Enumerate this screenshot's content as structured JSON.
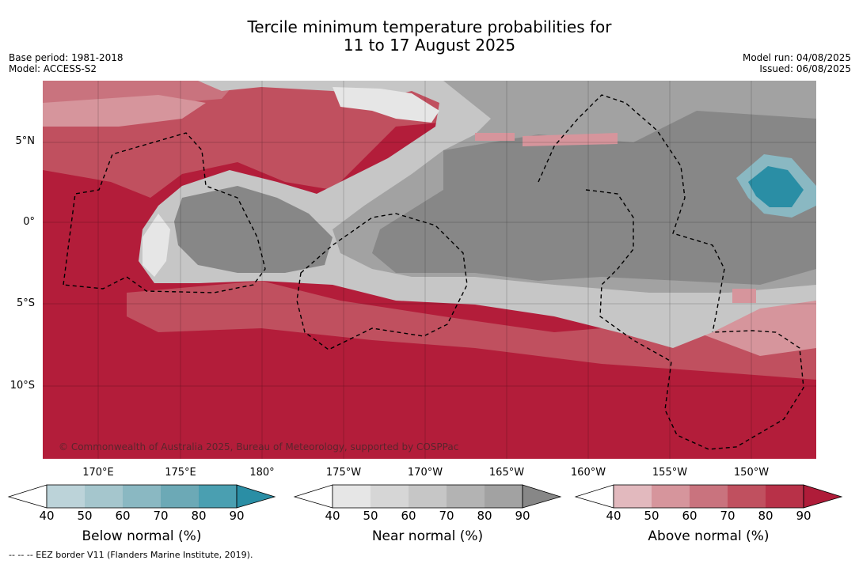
{
  "header": {
    "title_line1": "Tercile minimum temperature probabilities for",
    "title_line2": "11 to 17 August 2025",
    "base_period": "Base period: 1981-2018",
    "model": "Model: ACCESS-S2",
    "model_run": "Model run: 04/08/2025",
    "issued": "Issued: 06/08/2025"
  },
  "map": {
    "lat_labels": [
      "5°N",
      "0°",
      "5°S",
      "10°S"
    ],
    "lon_labels": [
      "170°E",
      "175°E",
      "180°",
      "175°W",
      "170°W",
      "165°W",
      "160°W",
      "155°W",
      "150°W"
    ],
    "copyright": "© Commonwealth of Australia 2025, Bureau of Meteorology, supported by COSPPac"
  },
  "colorbars": [
    {
      "title": "Below normal (%)",
      "ticks": [
        "40",
        "50",
        "60",
        "70",
        "80",
        "90"
      ],
      "colors": [
        "#ffffff",
        "#bcd3d9",
        "#a5c6cd",
        "#8ab8c2",
        "#6ca9b6",
        "#4a9fb1",
        "#2a8ea5"
      ]
    },
    {
      "title": "Near normal (%)",
      "ticks": [
        "40",
        "50",
        "60",
        "70",
        "80",
        "90"
      ],
      "colors": [
        "#ffffff",
        "#e6e6e6",
        "#d6d6d6",
        "#c6c6c6",
        "#b3b3b3",
        "#a2a2a2",
        "#878787"
      ]
    },
    {
      "title": "Above normal (%)",
      "ticks": [
        "40",
        "50",
        "60",
        "70",
        "80",
        "90"
      ],
      "colors": [
        "#ffffff",
        "#e2b9be",
        "#d6959c",
        "#c9737e",
        "#c0505f",
        "#b83148",
        "#af1c39"
      ]
    }
  ],
  "footnote": "--  --  -- EEZ border V11 (Flanders Marine Institute, 2019)."
}
